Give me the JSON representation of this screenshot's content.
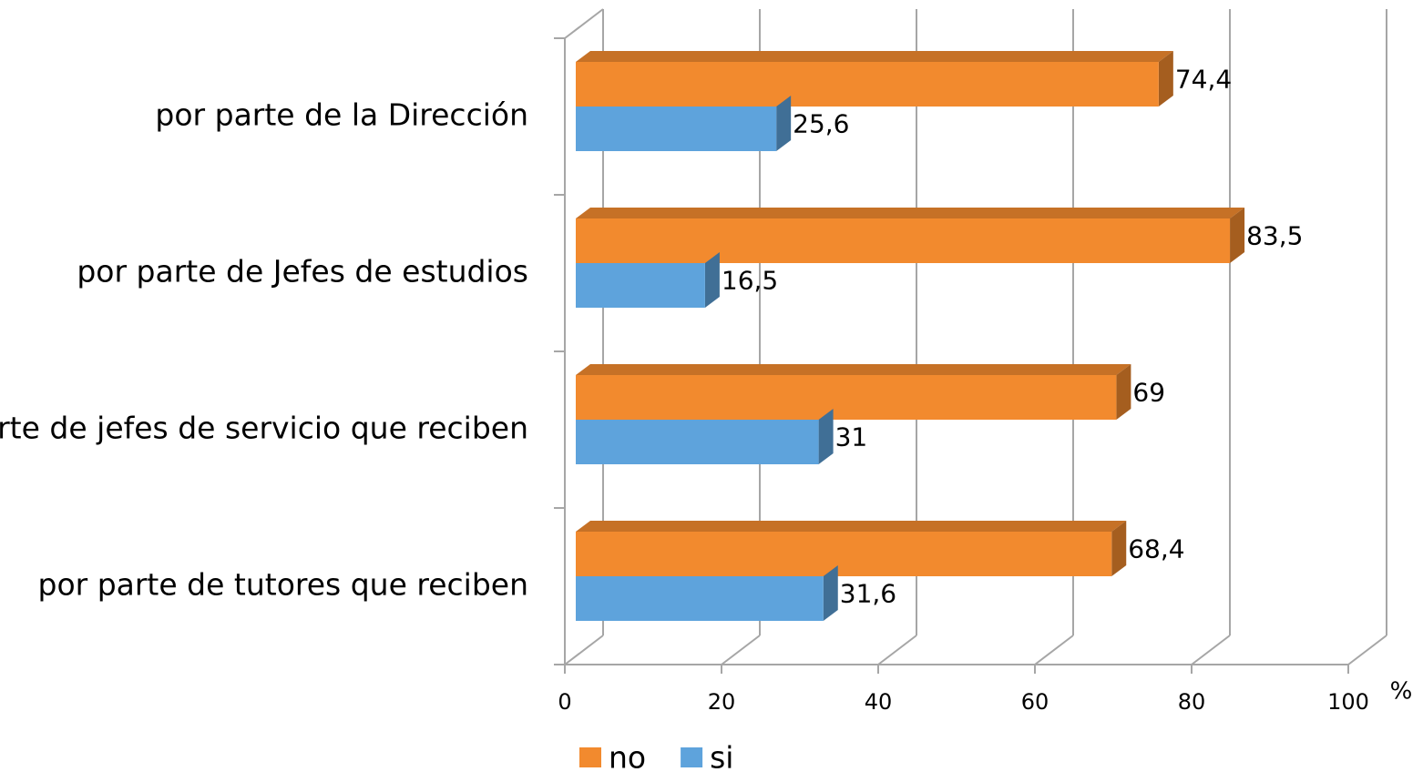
{
  "chart_data": {
    "type": "bar3d_horizontal",
    "categories": [
      "por parte de la Dirección",
      "por parte de Jefes de estudios",
      "por parte de jefes de servicio que reciben",
      "por parte de tutores que reciben"
    ],
    "series": [
      {
        "name": "no",
        "color": "#f28a2e",
        "values": [
          74.4,
          83.5,
          69,
          68.4
        ],
        "value_labels": [
          "74,4",
          "83,5",
          "69",
          "68,4"
        ]
      },
      {
        "name": "si",
        "color": "#5ea3dc",
        "values": [
          25.6,
          16.5,
          31,
          31.6
        ],
        "value_labels": [
          "25,6",
          "16,5",
          "31",
          "31,6"
        ]
      }
    ],
    "xlabel": "%",
    "xlim": [
      0,
      100
    ],
    "xticks": [
      0,
      20,
      40,
      60,
      80,
      100
    ],
    "grid": true,
    "legend": "bottom"
  }
}
